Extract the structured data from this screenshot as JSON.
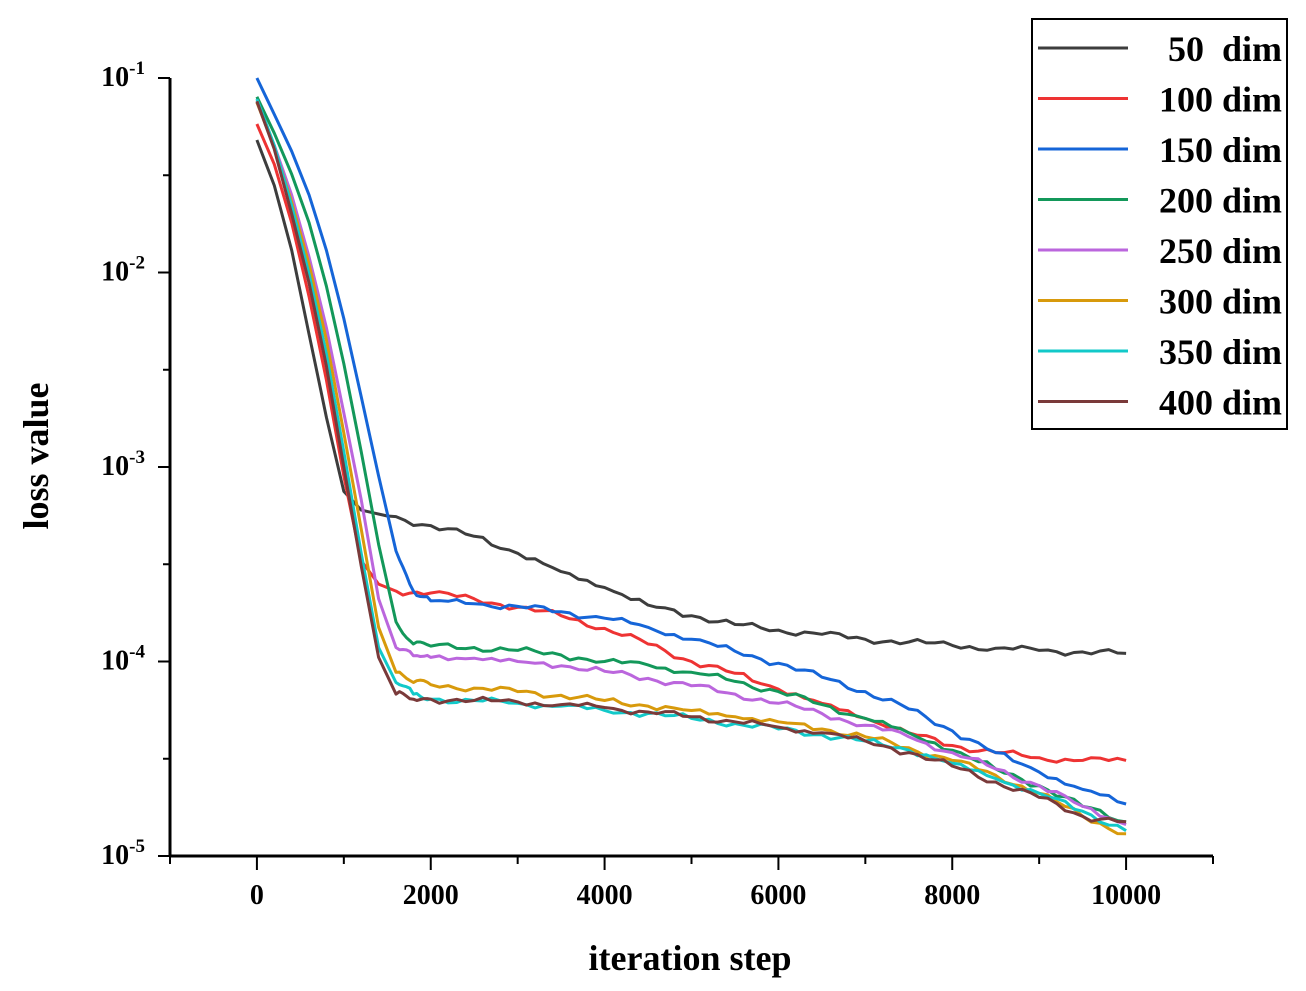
{
  "chart_data": {
    "type": "line",
    "title": "",
    "xlabel": "iteration step",
    "ylabel": "loss value",
    "xlim": [
      -1000,
      11000
    ],
    "ylim": [
      1e-05,
      0.1
    ],
    "yscale": "log",
    "xticks": [
      0,
      2000,
      4000,
      6000,
      8000,
      10000
    ],
    "xtick_labels": [
      "0",
      "2000",
      "4000",
      "6000",
      "8000",
      "10000"
    ],
    "yticks": [
      {
        "value": 0.1,
        "base": "10",
        "exp": "-1"
      },
      {
        "value": 0.01,
        "base": "10",
        "exp": "-2"
      },
      {
        "value": 0.001,
        "base": "10",
        "exp": "-3"
      },
      {
        "value": 0.0001,
        "base": "10",
        "exp": "-4"
      },
      {
        "value": 1e-05,
        "base": "10",
        "exp": "-5"
      }
    ],
    "legend_position": "top-right",
    "series": [
      {
        "name": "50  dim",
        "color": "#3d3d3d",
        "points": [
          [
            0,
            0.048
          ],
          [
            200,
            0.028
          ],
          [
            400,
            0.013
          ],
          [
            600,
            0.0048
          ],
          [
            800,
            0.0018
          ],
          [
            1000,
            0.00075
          ],
          [
            1200,
            0.0006
          ],
          [
            1500,
            0.00056
          ],
          [
            2000,
            0.0005
          ],
          [
            2500,
            0.00044
          ],
          [
            3000,
            0.00036
          ],
          [
            3500,
            0.00029
          ],
          [
            4000,
            0.00024
          ],
          [
            4500,
            0.000195
          ],
          [
            5000,
            0.000172
          ],
          [
            5500,
            0.000155
          ],
          [
            6000,
            0.000145
          ],
          [
            6500,
            0.000138
          ],
          [
            7000,
            0.00013
          ],
          [
            7500,
            0.000126
          ],
          [
            8000,
            0.000121
          ],
          [
            8500,
            0.000117
          ],
          [
            9000,
            0.000114
          ],
          [
            9500,
            0.000112
          ],
          [
            10000,
            0.00011
          ]
        ]
      },
      {
        "name": "100 dim",
        "color": "#ee3333",
        "points": [
          [
            0,
            0.058
          ],
          [
            200,
            0.036
          ],
          [
            400,
            0.018
          ],
          [
            600,
            0.0075
          ],
          [
            800,
            0.0028
          ],
          [
            1000,
            0.0009
          ],
          [
            1200,
            0.00033
          ],
          [
            1400,
            0.00025
          ],
          [
            1600,
            0.00023
          ],
          [
            2000,
            0.000225
          ],
          [
            2500,
            0.00021
          ],
          [
            3000,
            0.00019
          ],
          [
            3500,
            0.000172
          ],
          [
            4000,
            0.000148
          ],
          [
            4500,
            0.000123
          ],
          [
            5000,
            0.0001
          ],
          [
            5500,
            8.7e-05
          ],
          [
            6000,
            7.2e-05
          ],
          [
            6500,
            6.1e-05
          ],
          [
            7000,
            5.1e-05
          ],
          [
            7500,
            4.3e-05
          ],
          [
            8000,
            3.7e-05
          ],
          [
            8500,
            3.4e-05
          ],
          [
            9000,
            3.2e-05
          ],
          [
            9500,
            3.1e-05
          ],
          [
            10000,
            3.1e-05
          ]
        ]
      },
      {
        "name": "150 dim",
        "color": "#1565d8",
        "points": [
          [
            0,
            0.1
          ],
          [
            200,
            0.065
          ],
          [
            400,
            0.042
          ],
          [
            600,
            0.025
          ],
          [
            800,
            0.013
          ],
          [
            1000,
            0.0058
          ],
          [
            1200,
            0.0023
          ],
          [
            1400,
            0.0009
          ],
          [
            1600,
            0.00037
          ],
          [
            1800,
            0.00023
          ],
          [
            2000,
            0.000205
          ],
          [
            2500,
            0.000198
          ],
          [
            3000,
            0.000192
          ],
          [
            3500,
            0.00018
          ],
          [
            4000,
            0.000167
          ],
          [
            4500,
            0.00015
          ],
          [
            5000,
            0.00013
          ],
          [
            5500,
            0.000113
          ],
          [
            6000,
            9.8e-05
          ],
          [
            6500,
            8.3e-05
          ],
          [
            7000,
            7e-05
          ],
          [
            7500,
            5.7e-05
          ],
          [
            8000,
            4.4e-05
          ],
          [
            8500,
            3.4e-05
          ],
          [
            9000,
            2.7e-05
          ],
          [
            9500,
            2.2e-05
          ],
          [
            10000,
            1.85e-05
          ]
        ]
      },
      {
        "name": "200 dim",
        "color": "#13985a",
        "points": [
          [
            0,
            0.08
          ],
          [
            200,
            0.052
          ],
          [
            400,
            0.032
          ],
          [
            600,
            0.018
          ],
          [
            800,
            0.0085
          ],
          [
            1000,
            0.0034
          ],
          [
            1200,
            0.0012
          ],
          [
            1400,
            0.0004
          ],
          [
            1600,
            0.00016
          ],
          [
            1800,
            0.000123
          ],
          [
            2000,
            0.00012
          ],
          [
            2500,
            0.000118
          ],
          [
            3000,
            0.000114
          ],
          [
            3500,
            0.000108
          ],
          [
            4000,
            0.0001
          ],
          [
            4500,
            9.6e-05
          ],
          [
            5000,
            8.8e-05
          ],
          [
            5500,
            7.9e-05
          ],
          [
            6000,
            7e-05
          ],
          [
            6500,
            6e-05
          ],
          [
            7000,
            5.1e-05
          ],
          [
            7500,
            4.3e-05
          ],
          [
            8000,
            3.5e-05
          ],
          [
            8500,
            2.8e-05
          ],
          [
            9000,
            2.3e-05
          ],
          [
            9500,
            1.8e-05
          ],
          [
            10000,
            1.5e-05
          ]
        ]
      },
      {
        "name": "250 dim",
        "color": "#bb66dd",
        "points": [
          [
            0,
            0.075
          ],
          [
            200,
            0.045
          ],
          [
            400,
            0.025
          ],
          [
            600,
            0.012
          ],
          [
            800,
            0.0052
          ],
          [
            1000,
            0.0019
          ],
          [
            1200,
            0.00068
          ],
          [
            1400,
            0.00021
          ],
          [
            1600,
            0.000118
          ],
          [
            1800,
            0.000107
          ],
          [
            2000,
            0.000105
          ],
          [
            2500,
            0.000104
          ],
          [
            3000,
            0.0001
          ],
          [
            3500,
            9.5e-05
          ],
          [
            4000,
            8.9e-05
          ],
          [
            4500,
            8.2e-05
          ],
          [
            5000,
            7.5e-05
          ],
          [
            5500,
            6.8e-05
          ],
          [
            6000,
            6.1e-05
          ],
          [
            6500,
            5.4e-05
          ],
          [
            7000,
            4.7e-05
          ],
          [
            7500,
            4.1e-05
          ],
          [
            8000,
            3.4e-05
          ],
          [
            8500,
            2.8e-05
          ],
          [
            9000,
            2.3e-05
          ],
          [
            9500,
            1.8e-05
          ],
          [
            10000,
            1.45e-05
          ]
        ]
      },
      {
        "name": "300 dim",
        "color": "#d89a0c",
        "points": [
          [
            0,
            0.075
          ],
          [
            200,
            0.044
          ],
          [
            400,
            0.023
          ],
          [
            600,
            0.011
          ],
          [
            800,
            0.0045
          ],
          [
            1000,
            0.0015
          ],
          [
            1200,
            0.00048
          ],
          [
            1400,
            0.00015
          ],
          [
            1600,
            8.8e-05
          ],
          [
            1800,
            7.8e-05
          ],
          [
            2000,
            7.6e-05
          ],
          [
            2500,
            7.3e-05
          ],
          [
            3000,
            7e-05
          ],
          [
            3500,
            6.7e-05
          ],
          [
            4000,
            6.3e-05
          ],
          [
            4500,
            5.9e-05
          ],
          [
            5000,
            5.6e-05
          ],
          [
            5500,
            5.2e-05
          ],
          [
            6000,
            4.9e-05
          ],
          [
            6500,
            4.5e-05
          ],
          [
            7000,
            4.1e-05
          ],
          [
            7500,
            3.6e-05
          ],
          [
            8000,
            3.1e-05
          ],
          [
            8500,
            2.6e-05
          ],
          [
            9000,
            2.1e-05
          ],
          [
            9500,
            1.6e-05
          ],
          [
            10000,
            1.3e-05
          ]
        ]
      },
      {
        "name": "350 dim",
        "color": "#12c9c9",
        "points": [
          [
            0,
            0.078
          ],
          [
            200,
            0.045
          ],
          [
            400,
            0.022
          ],
          [
            600,
            0.0098
          ],
          [
            800,
            0.0038
          ],
          [
            1000,
            0.0012
          ],
          [
            1200,
            0.00036
          ],
          [
            1400,
            0.000118
          ],
          [
            1600,
            7.8e-05
          ],
          [
            1800,
            6.8e-05
          ],
          [
            2000,
            6.4e-05
          ],
          [
            2500,
            6.3e-05
          ],
          [
            3000,
            6.1e-05
          ],
          [
            3500,
            5.9e-05
          ],
          [
            4000,
            5.6e-05
          ],
          [
            4500,
            5.4e-05
          ],
          [
            5000,
            5.1e-05
          ],
          [
            5500,
            4.8e-05
          ],
          [
            6000,
            4.5e-05
          ],
          [
            6500,
            4.2e-05
          ],
          [
            7000,
            3.9e-05
          ],
          [
            7500,
            3.5e-05
          ],
          [
            8000,
            3e-05
          ],
          [
            8500,
            2.5e-05
          ],
          [
            9000,
            2.1e-05
          ],
          [
            9500,
            1.7e-05
          ],
          [
            10000,
            1.35e-05
          ]
        ]
      },
      {
        "name": "400 dim",
        "color": "#7a3a3a",
        "points": [
          [
            0,
            0.076
          ],
          [
            200,
            0.043
          ],
          [
            400,
            0.02
          ],
          [
            600,
            0.0088
          ],
          [
            800,
            0.0033
          ],
          [
            1000,
            0.001
          ],
          [
            1200,
            0.00031
          ],
          [
            1400,
            0.000105
          ],
          [
            1600,
            6.8e-05
          ],
          [
            1800,
            6.4e-05
          ],
          [
            2000,
            6.4e-05
          ],
          [
            2500,
            6.3e-05
          ],
          [
            3000,
            6.2e-05
          ],
          [
            3500,
            6e-05
          ],
          [
            4000,
            5.8e-05
          ],
          [
            4500,
            5.5e-05
          ],
          [
            5000,
            5.2e-05
          ],
          [
            5500,
            4.9e-05
          ],
          [
            6000,
            4.6e-05
          ],
          [
            6500,
            4.3e-05
          ],
          [
            7000,
            3.9e-05
          ],
          [
            7500,
            3.4e-05
          ],
          [
            8000,
            2.9e-05
          ],
          [
            8500,
            2.4e-05
          ],
          [
            9000,
            2e-05
          ],
          [
            9500,
            1.6e-05
          ],
          [
            10000,
            1.5e-05
          ]
        ]
      }
    ]
  }
}
